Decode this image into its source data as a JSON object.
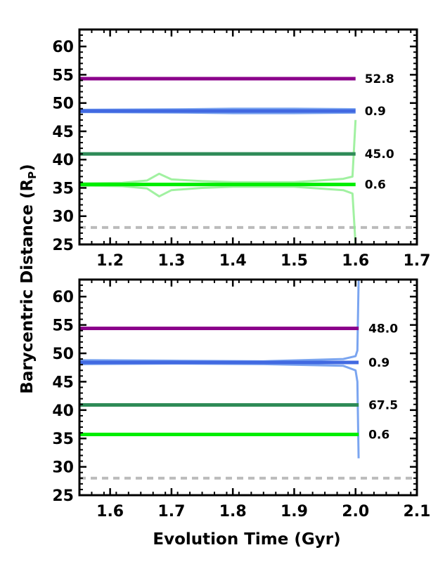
{
  "chart_data": [
    {
      "type": "line",
      "xlim": [
        1.15,
        1.7
      ],
      "ylim": [
        25,
        63
      ],
      "xticks": [
        "1.2",
        "1.3",
        "1.4",
        "1.5",
        "1.6",
        "1.7"
      ],
      "xtick_values": [
        1.2,
        1.3,
        1.4,
        1.5,
        1.6,
        1.7
      ],
      "yticks": [
        "25",
        "30",
        "35",
        "40",
        "45",
        "50",
        "55",
        "60"
      ],
      "ytick_values": [
        25,
        30,
        35,
        40,
        45,
        50,
        55,
        60
      ],
      "grid": false,
      "reference_line": {
        "y": 28,
        "style": "dashed",
        "color": "#bbbbbb"
      },
      "series": [
        {
          "color": "#8b008b",
          "x": [
            1.15,
            1.6
          ],
          "y": [
            54.3,
            54.3
          ],
          "label": "52.8"
        },
        {
          "color": "#4169e1",
          "x": [
            1.15,
            1.6
          ],
          "y": [
            48.6,
            48.6
          ],
          "label": "0.9"
        },
        {
          "color": "#2e8b57",
          "x": [
            1.15,
            1.6
          ],
          "y": [
            41.0,
            41.0
          ],
          "label": "45.0"
        },
        {
          "color": "#00ee00",
          "x": [
            1.15,
            1.6
          ],
          "y": [
            35.6,
            35.6
          ],
          "label": "0.6"
        }
      ],
      "spread_traces": [
        {
          "color": "#90ee90",
          "note_points_x": [
            1.15,
            1.22,
            1.26,
            1.28,
            1.3,
            1.35,
            1.4,
            1.5,
            1.58,
            1.595,
            1.6
          ],
          "upper": [
            35.8,
            35.9,
            36.3,
            37.5,
            36.5,
            36.2,
            36.0,
            36.0,
            36.6,
            37.0,
            47.0
          ],
          "lower": [
            35.4,
            35.3,
            34.9,
            33.5,
            34.6,
            35.0,
            35.2,
            35.2,
            34.6,
            34.0,
            25.0
          ]
        },
        {
          "color": "#6495ed",
          "note_points_x": [
            1.15,
            1.33,
            1.4,
            1.5,
            1.6
          ],
          "upper": [
            48.8,
            48.9,
            49.0,
            49.0,
            48.9
          ],
          "lower": [
            48.4,
            48.3,
            48.2,
            48.2,
            48.3
          ]
        }
      ]
    },
    {
      "type": "line",
      "xlim": [
        1.55,
        2.1
      ],
      "ylim": [
        25,
        63
      ],
      "xticks": [
        "1.6",
        "1.7",
        "1.8",
        "1.9",
        "2.0",
        "2.1"
      ],
      "xtick_values": [
        1.6,
        1.7,
        1.8,
        1.9,
        2.0,
        2.1
      ],
      "yticks": [
        "25",
        "30",
        "35",
        "40",
        "45",
        "50",
        "55",
        "60"
      ],
      "ytick_values": [
        25,
        30,
        35,
        40,
        45,
        50,
        55,
        60
      ],
      "grid": false,
      "reference_line": {
        "y": 28,
        "style": "dashed",
        "color": "#bbbbbb"
      },
      "series": [
        {
          "color": "#8b008b",
          "x": [
            1.55,
            2.005
          ],
          "y": [
            54.4,
            54.4
          ],
          "label": "48.0"
        },
        {
          "color": "#4169e1",
          "x": [
            1.55,
            2.005
          ],
          "y": [
            48.4,
            48.4
          ],
          "label": "0.9"
        },
        {
          "color": "#2e8b57",
          "x": [
            1.55,
            2.005
          ],
          "y": [
            40.9,
            40.9
          ],
          "label": "67.5"
        },
        {
          "color": "#00ee00",
          "x": [
            1.55,
            2.005
          ],
          "y": [
            35.7,
            35.7
          ],
          "label": "0.6"
        }
      ],
      "spread_traces": [
        {
          "color": "#6495ed",
          "note_points_x": [
            1.55,
            1.7,
            1.85,
            1.98,
            2.0,
            2.003,
            2.005
          ],
          "upper": [
            48.8,
            48.7,
            48.6,
            49.0,
            49.5,
            50.5,
            63.0
          ],
          "lower": [
            48.1,
            48.2,
            48.1,
            47.8,
            47.0,
            45.0,
            31.5
          ]
        }
      ]
    }
  ],
  "axes": {
    "xlabel": "Evolution Time (Gyr)",
    "ylabel_main": "Barycentric Distance (R",
    "ylabel_sub": "P",
    "ylabel_close": ")"
  }
}
